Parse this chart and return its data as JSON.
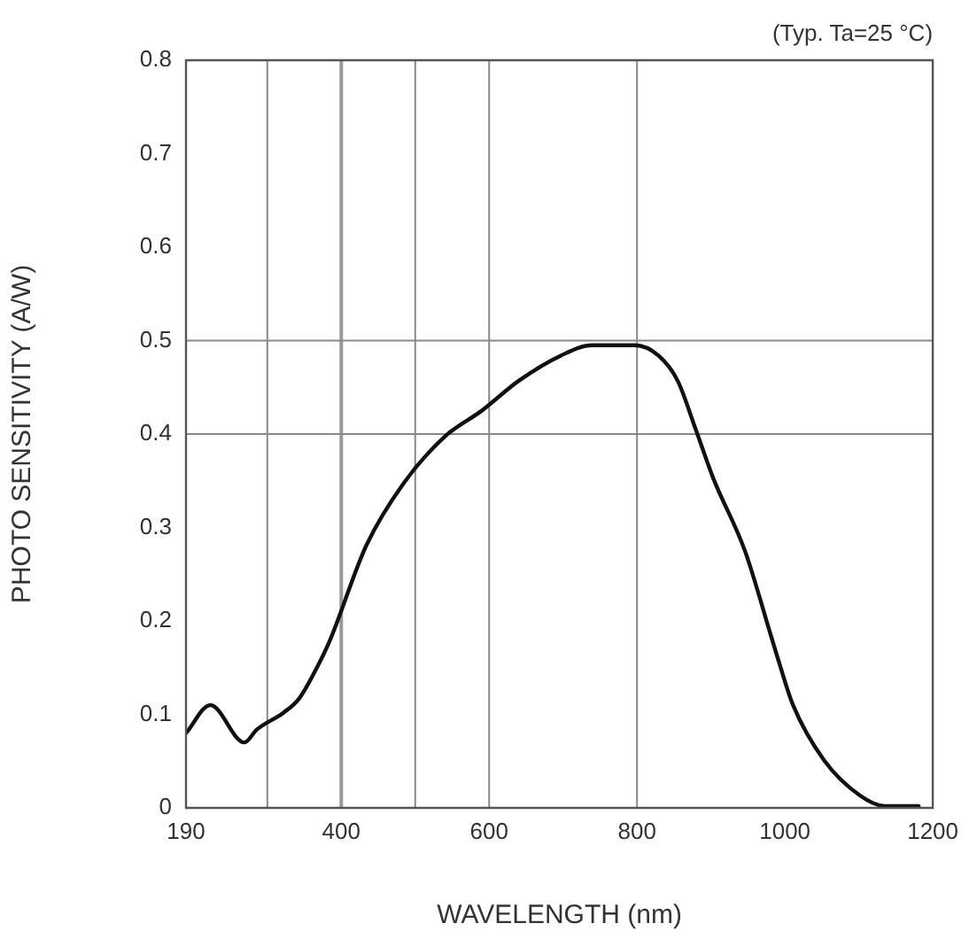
{
  "chart_data": {
    "type": "line",
    "xlabel": "WAVELENGTH (nm)",
    "ylabel": "PHOTO SENSITIVITY (A/W)",
    "annotations": [
      "(Typ. Ta=25 °C)"
    ],
    "series": [
      {
        "color": "#111111",
        "x": [
          190,
          223,
          269,
          286,
          322,
          343,
          367,
          384,
          434,
          484,
          541,
          590,
          640,
          697,
          739,
          797,
          829,
          855,
          879,
          903,
          946,
          982,
          992,
          1011,
          1053,
          1102,
          1135,
          1181
        ],
        "values": [
          0.08,
          0.11,
          0.07,
          0.084,
          0.102,
          0.117,
          0.15,
          0.178,
          0.281,
          0.347,
          0.398,
          0.425,
          0.457,
          0.484,
          0.495,
          0.495,
          0.484,
          0.457,
          0.406,
          0.353,
          0.275,
          0.182,
          0.156,
          0.11,
          0.051,
          0.013,
          0.002,
          0.002
        ]
      }
    ],
    "xlim": [
      190,
      1200
    ],
    "xticks": [
      190,
      400,
      600,
      800,
      1000,
      1200
    ],
    "ylim": [
      0,
      0.8
    ],
    "yticks": [
      0,
      0.1,
      0.2,
      0.3,
      0.4,
      0.5,
      0.6,
      0.7,
      0.8
    ],
    "grid": false,
    "legend": false,
    "marker": "none",
    "line_style": "solid",
    "ref_lines": [
      {
        "axis": "x",
        "value": 300,
        "color": "#888888"
      },
      {
        "axis": "x",
        "value": 400,
        "color": "#999999"
      },
      {
        "axis": "x",
        "value": 500,
        "color": "#888888"
      },
      {
        "axis": "x",
        "value": 600,
        "color": "#888888"
      },
      {
        "axis": "x",
        "value": 800,
        "color": "#888888"
      },
      {
        "axis": "y",
        "value": 0.4,
        "color": "#888888"
      },
      {
        "axis": "y",
        "value": 0.5,
        "color": "#888888"
      }
    ]
  }
}
